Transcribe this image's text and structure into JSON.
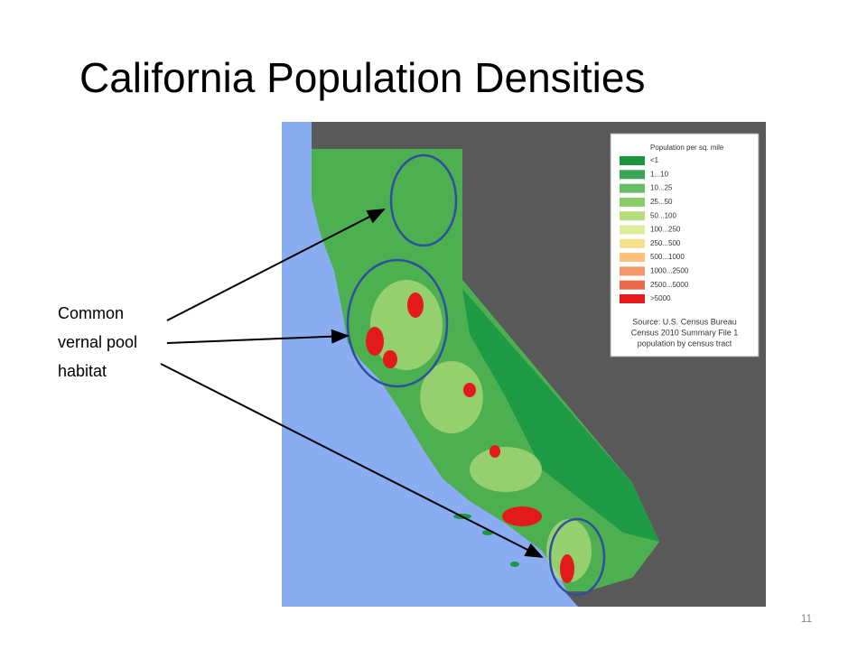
{
  "title": "California Population Densities",
  "annotation": {
    "lines": [
      "Common",
      "vernal pool",
      "habitat"
    ]
  },
  "map": {
    "legend": {
      "title": "Population per sq. mile",
      "entries": [
        {
          "label": "<1",
          "color": "#1a9641"
        },
        {
          "label": "1...10",
          "color": "#3aa655"
        },
        {
          "label": "10...25",
          "color": "#66bd63"
        },
        {
          "label": "25...50",
          "color": "#8ccc6a"
        },
        {
          "label": "50...100",
          "color": "#b5dd7a"
        },
        {
          "label": "100...250",
          "color": "#dcee9a"
        },
        {
          "label": "250...500",
          "color": "#f6e08a"
        },
        {
          "label": "500...1000",
          "color": "#f9c07a"
        },
        {
          "label": "1000...2500",
          "color": "#f49a6a"
        },
        {
          "label": "2500...5000",
          "color": "#eb6a4a"
        },
        {
          "label": ">5000",
          "color": "#e31a1c"
        }
      ]
    },
    "source": [
      "Source: U.S. Census Bureau",
      "Census 2010 Summary File 1",
      "population by census tract"
    ]
  },
  "page_number": "11"
}
